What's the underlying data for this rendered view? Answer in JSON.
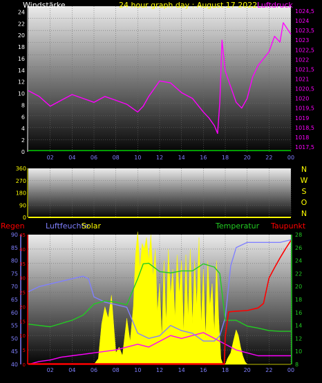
{
  "title": "24 hour graph day : August 17 2022",
  "colors": {
    "background": "#000000",
    "title": "#ffff00",
    "wind_axis": "#ffffff",
    "pressure": "#ff00ff",
    "direction": "#ffff00",
    "rain": "#ff0000",
    "humidity": "#8080ff",
    "solar": "#ffff00",
    "temperature": "#22cc22",
    "dewpoint": "#ff0000",
    "wind_line": "#00cc00",
    "xticks": "#8080ff"
  },
  "chart_data": [
    {
      "type": "line",
      "name": "wind-pressure",
      "left_label": "Windstärke",
      "right_label": "Luftdruck",
      "x_ticks": [
        "02",
        "04",
        "06",
        "08",
        "10",
        "12",
        "14",
        "16",
        "18",
        "20",
        "22",
        "00"
      ],
      "left_axis": {
        "min": 0,
        "max": 25,
        "ticks": [
          "0",
          "2",
          "4",
          "6",
          "8",
          "10",
          "12",
          "14",
          "16",
          "18",
          "20",
          "22",
          "24"
        ]
      },
      "right_axis": {
        "min": 1017.25,
        "max": 1024.75,
        "ticks": [
          "1017,5",
          "1018",
          "1018,5",
          "1019",
          "1019,5",
          "1020",
          "1020,5",
          "1021",
          "1021,5",
          "1022",
          "1022,5",
          "1023",
          "1023,5",
          "1024",
          "1024,5"
        ]
      },
      "series": [
        {
          "name": "Luftdruck",
          "axis": "right",
          "x": [
            0,
            1,
            2,
            3,
            4,
            5,
            6,
            7,
            8,
            9,
            10,
            10.5,
            11,
            12,
            13,
            14,
            15,
            16,
            16.5,
            17,
            17.3,
            17.5,
            17.7,
            18,
            18.5,
            19,
            19.5,
            20,
            20.5,
            21,
            22,
            22.5,
            23,
            23.3,
            24
          ],
          "y": [
            1020.4,
            1020.1,
            1019.6,
            1019.9,
            1020.2,
            1020.0,
            1019.8,
            1020.1,
            1019.9,
            1019.7,
            1019.3,
            1019.6,
            1020.1,
            1020.9,
            1020.8,
            1020.3,
            1020.0,
            1019.3,
            1019.0,
            1018.6,
            1018.2,
            1019.8,
            1023.0,
            1021.4,
            1020.6,
            1019.8,
            1019.5,
            1020.0,
            1021.1,
            1021.7,
            1022.4,
            1023.2,
            1022.9,
            1023.9,
            1023.3
          ]
        },
        {
          "name": "Windstärke",
          "axis": "left",
          "x": [
            0,
            24
          ],
          "y": [
            0.2,
            0.2
          ]
        }
      ]
    },
    {
      "type": "line",
      "name": "wind-direction",
      "x_ticks": [
        "02",
        "04",
        "06",
        "08",
        "10",
        "12",
        "14",
        "16",
        "18",
        "20",
        "22",
        "00"
      ],
      "left_axis": {
        "min": 0,
        "max": 360,
        "ticks": [
          "0",
          "90",
          "180",
          "270",
          "360"
        ]
      },
      "right_labels": [
        "N",
        "W",
        "S",
        "O",
        "N"
      ],
      "series": [
        {
          "name": "direction",
          "x": [
            0,
            24
          ],
          "y": [
            0,
            0
          ]
        }
      ]
    },
    {
      "type": "area",
      "name": "humidity-temperature",
      "labels": {
        "rain": "Regen",
        "humidity": "Luftfeuchte",
        "solar": "Solar",
        "temperature": "Temperatur",
        "dewpoint": "Taupunkt"
      },
      "x_ticks": [
        "02",
        "04",
        "06",
        "08",
        "10",
        "12",
        "14",
        "16",
        "18",
        "20",
        "22",
        "00"
      ],
      "humidity_axis": {
        "min": 40,
        "max": 90,
        "ticks": [
          "40",
          "45",
          "50",
          "55",
          "60",
          "65",
          "70",
          "75",
          "80",
          "85",
          "90"
        ]
      },
      "rain_axis": {
        "min": 0,
        "max": 45,
        "ticks": [
          "0",
          "5",
          "10",
          "15",
          "20",
          "25",
          "30",
          "35",
          "40",
          "45"
        ]
      },
      "temp_axis": {
        "min": 8,
        "max": 28,
        "ticks": [
          "8",
          "10",
          "12",
          "14",
          "16",
          "18",
          "20",
          "22",
          "24",
          "26",
          "28"
        ]
      },
      "series": [
        {
          "name": "Luftfeuchte",
          "axis": "humidity",
          "x": [
            0,
            1,
            2,
            3,
            4,
            5,
            5.5,
            6,
            7,
            8,
            9,
            10,
            11,
            12,
            13,
            14,
            15,
            16,
            17,
            17.5,
            18,
            18.5,
            19,
            20,
            21,
            22,
            23,
            24
          ],
          "y": [
            68,
            70,
            71,
            72,
            73,
            74,
            73,
            66,
            64,
            63,
            62,
            52,
            50,
            51,
            55,
            53,
            52,
            49,
            49,
            51,
            58,
            78,
            85,
            87,
            87,
            87,
            87,
            88
          ]
        },
        {
          "name": "Temperatur",
          "axis": "temp",
          "x": [
            0,
            2,
            4,
            5,
            6,
            7,
            8,
            9,
            10,
            10.5,
            11,
            12,
            13,
            14,
            15,
            16,
            17,
            17.5,
            18,
            19,
            20,
            21,
            22,
            23,
            24
          ],
          "y": [
            14.2,
            13.8,
            14.8,
            15.6,
            17.3,
            17.8,
            17.6,
            17.2,
            21.2,
            23.5,
            23.6,
            22.3,
            22.1,
            22.4,
            22.4,
            23.5,
            23.0,
            22.0,
            14.8,
            14.8,
            13.9,
            13.6,
            13.2,
            13.1,
            13.1
          ]
        },
        {
          "name": "Taupunkt",
          "axis": "temp",
          "x": [
            0,
            17.8,
            17.9,
            18,
            18.3,
            19,
            20,
            21,
            21.5,
            22,
            22.5,
            23,
            23.5,
            24
          ],
          "y": [
            8,
            8,
            8,
            12.3,
            16.1,
            16.2,
            16.3,
            16.7,
            17.4,
            21.3,
            22.9,
            24.4,
            25.8,
            27.1
          ]
        },
        {
          "name": "Regen",
          "axis": "rain",
          "x": [
            0,
            1,
            2,
            3,
            4,
            5,
            6,
            7,
            8,
            9,
            10,
            11,
            12,
            13,
            14,
            15,
            16,
            17,
            18,
            19,
            20,
            21,
            22,
            23,
            24
          ],
          "y": [
            0,
            1,
            1.5,
            2.5,
            3,
            3.5,
            4,
            4.5,
            5,
            6,
            7,
            6,
            8,
            10,
            9,
            10,
            11,
            9,
            7,
            5,
            4,
            3,
            3,
            3,
            3
          ]
        },
        {
          "name": "Solar",
          "axis": "rain",
          "x": [
            0,
            6,
            6.4,
            6.7,
            7,
            7.3,
            7.6,
            7.8,
            8,
            8.3,
            8.6,
            9,
            9.3,
            9.6,
            9.8,
            10,
            10.2,
            10.4,
            10.6,
            10.8,
            11,
            11.2,
            11.4,
            11.6,
            11.8,
            12,
            12.2,
            12.4,
            12.6,
            12.8,
            13,
            13.2,
            13.4,
            13.6,
            13.8,
            14,
            14.2,
            14.4,
            14.6,
            14.8,
            15,
            15.2,
            15.4,
            15.6,
            15.8,
            16,
            16.2,
            16.4,
            16.6,
            16.8,
            17,
            17.2,
            17.4,
            17.6,
            17.8,
            18,
            18.2,
            18.5,
            18.8,
            19,
            19.2,
            19.4,
            19.6,
            19.8,
            20,
            20.3,
            21,
            24
          ],
          "y": [
            0,
            0,
            2,
            14,
            20,
            16,
            24,
            14,
            4,
            6,
            3,
            16,
            8,
            20,
            38,
            46,
            33,
            42,
            40,
            44,
            36,
            45,
            30,
            40,
            18,
            28,
            9,
            36,
            14,
            40,
            24,
            33,
            16,
            38,
            24,
            36,
            11,
            38,
            16,
            40,
            14,
            36,
            20,
            44,
            14,
            33,
            9,
            36,
            20,
            28,
            11,
            36,
            16,
            2,
            0,
            0,
            2,
            4,
            9,
            12,
            10,
            6,
            3,
            1,
            0,
            0,
            0,
            0
          ]
        }
      ]
    }
  ]
}
